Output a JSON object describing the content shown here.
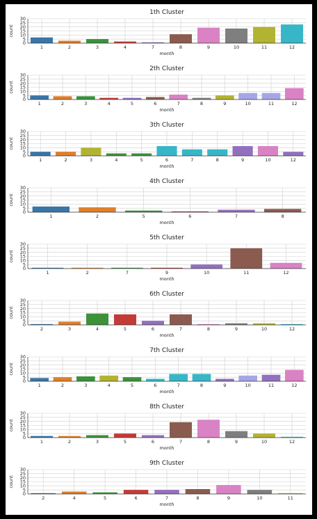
{
  "palette": [
    "#3a76a6",
    "#e07f2c",
    "#3b923b",
    "#c33b37",
    "#9370bf",
    "#8b5b4f",
    "#d982c4",
    "#7f7f7f",
    "#b3b332",
    "#37b6c8",
    "#a6a6e6",
    "#6d4c41",
    "#ff99cc"
  ],
  "chart_data": [
    {
      "type": "bar",
      "title": "1th Cluster",
      "xlabel": "month",
      "ylabel": "count",
      "ylim": [
        0,
        30
      ],
      "yticks": [
        0,
        5,
        10,
        15,
        20,
        25,
        30
      ],
      "categories": [
        "1",
        "2",
        "3",
        "4",
        "7",
        "8",
        "9",
        "10",
        "11",
        "12"
      ],
      "values": [
        7,
        3,
        5,
        2,
        1,
        11,
        19,
        18,
        20,
        23
      ],
      "colors": [
        "#3a76a6",
        "#e07f2c",
        "#3b923b",
        "#c33b37",
        "#9370bf",
        "#8b5b4f",
        "#d982c4",
        "#7f7f7f",
        "#b3b332",
        "#37b6c8"
      ]
    },
    {
      "type": "bar",
      "title": "2th Cluster",
      "xlabel": "month",
      "ylabel": "count",
      "ylim": [
        0,
        30
      ],
      "yticks": [
        0,
        5,
        10,
        15,
        20,
        25,
        30
      ],
      "categories": [
        "1",
        "2",
        "3",
        "4",
        "5",
        "6",
        "7",
        "8",
        "9",
        "10",
        "11",
        "12"
      ],
      "values": [
        5,
        4,
        4,
        2,
        2,
        3,
        6,
        2,
        5,
        8,
        8,
        14
      ],
      "colors": [
        "#3a76a6",
        "#e07f2c",
        "#3b923b",
        "#c33b37",
        "#9370bf",
        "#8b5b4f",
        "#d982c4",
        "#7f7f7f",
        "#b3b332",
        "#a6a6e6",
        "#a6a6e6",
        "#d982c4"
      ]
    },
    {
      "type": "bar",
      "title": "3th Cluster",
      "xlabel": "month",
      "ylabel": "count",
      "ylim": [
        0,
        30
      ],
      "yticks": [
        0,
        5,
        10,
        15,
        20,
        25,
        30
      ],
      "categories": [
        "1",
        "2",
        "3",
        "4",
        "5",
        "6",
        "7",
        "8",
        "9",
        "10",
        "12"
      ],
      "values": [
        5,
        5,
        10,
        3,
        3,
        12,
        8,
        8,
        12,
        12,
        5
      ],
      "colors": [
        "#3a76a6",
        "#e07f2c",
        "#b3b332",
        "#3b923b",
        "#3b923b",
        "#37b6c8",
        "#37b6c8",
        "#37b6c8",
        "#9370bf",
        "#d982c4",
        "#9370bf"
      ]
    },
    {
      "type": "bar",
      "title": "4th Cluster",
      "xlabel": "month",
      "ylabel": "count",
      "ylim": [
        0,
        30
      ],
      "yticks": [
        0,
        5,
        10,
        15,
        20,
        25,
        30
      ],
      "categories": [
        "1",
        "2",
        "5",
        "6",
        "7",
        "8"
      ],
      "values": [
        7,
        6,
        2,
        1,
        3,
        4
      ],
      "colors": [
        "#3a76a6",
        "#e07f2c",
        "#3b923b",
        "#c33b37",
        "#9370bf",
        "#8b5b4f"
      ]
    },
    {
      "type": "bar",
      "title": "5th Cluster",
      "xlabel": "month",
      "ylabel": "count",
      "ylim": [
        0,
        30
      ],
      "yticks": [
        0,
        5,
        10,
        15,
        20,
        25,
        30
      ],
      "categories": [
        "1",
        "2",
        "7",
        "9",
        "10",
        "11",
        "12"
      ],
      "values": [
        1,
        1,
        1,
        1,
        5,
        25,
        7
      ],
      "colors": [
        "#3a76a6",
        "#e07f2c",
        "#3b923b",
        "#c33b37",
        "#9370bf",
        "#8b5b4f",
        "#d982c4"
      ]
    },
    {
      "type": "bar",
      "title": "6th Cluster",
      "xlabel": "month",
      "ylabel": "count",
      "ylim": [
        0,
        30
      ],
      "yticks": [
        0,
        5,
        10,
        15,
        20,
        25,
        30
      ],
      "categories": [
        "2",
        "3",
        "4",
        "5",
        "6",
        "7",
        "8",
        "9",
        "10",
        "12"
      ],
      "values": [
        1,
        4,
        14,
        13,
        5,
        13,
        1,
        2,
        2,
        1
      ],
      "colors": [
        "#3a76a6",
        "#e07f2c",
        "#3b923b",
        "#c33b37",
        "#9370bf",
        "#8b5b4f",
        "#d982c4",
        "#7f7f7f",
        "#b3b332",
        "#37b6c8"
      ]
    },
    {
      "type": "bar",
      "title": "7th Cluster",
      "xlabel": "month",
      "ylabel": "count",
      "ylim": [
        0,
        30
      ],
      "yticks": [
        0,
        5,
        10,
        15,
        20,
        25,
        30
      ],
      "categories": [
        "1",
        "2",
        "3",
        "4",
        "5",
        "6",
        "7",
        "8",
        "9",
        "10",
        "11",
        "12"
      ],
      "values": [
        4,
        5,
        6,
        7,
        5,
        3,
        9,
        9,
        3,
        7,
        8,
        14
      ],
      "colors": [
        "#3a76a6",
        "#e07f2c",
        "#3b923b",
        "#b3b332",
        "#3b923b",
        "#37b6c8",
        "#37b6c8",
        "#37b6c8",
        "#9370bf",
        "#a6a6e6",
        "#9370bf",
        "#d982c4"
      ]
    },
    {
      "type": "bar",
      "title": "8th Cluster",
      "xlabel": "month",
      "ylabel": "count",
      "ylim": [
        0,
        30
      ],
      "yticks": [
        0,
        5,
        10,
        15,
        20,
        25,
        30
      ],
      "categories": [
        "1",
        "2",
        "3",
        "5",
        "6",
        "7",
        "8",
        "9",
        "10",
        "12"
      ],
      "values": [
        2,
        2,
        3,
        5,
        3,
        19,
        22,
        8,
        5,
        1
      ],
      "colors": [
        "#3a76a6",
        "#e07f2c",
        "#3b923b",
        "#c33b37",
        "#9370bf",
        "#8b5b4f",
        "#d982c4",
        "#7f7f7f",
        "#b3b332",
        "#37b6c8"
      ]
    },
    {
      "type": "bar",
      "title": "9th Cluster",
      "xlabel": "month",
      "ylabel": "count",
      "ylim": [
        0,
        30
      ],
      "yticks": [
        0,
        5,
        10,
        15,
        20,
        25,
        30
      ],
      "categories": [
        "2",
        "4",
        "5",
        "6",
        "7",
        "8",
        "9",
        "10",
        "11"
      ],
      "values": [
        1,
        3,
        2,
        5,
        5,
        6,
        11,
        5,
        1
      ],
      "colors": [
        "#3a76a6",
        "#e07f2c",
        "#3b923b",
        "#c33b37",
        "#9370bf",
        "#8b5b4f",
        "#d982c4",
        "#7f7f7f",
        "#b3b332"
      ]
    }
  ]
}
